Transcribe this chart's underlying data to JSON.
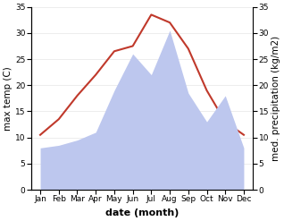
{
  "months": [
    "Jan",
    "Feb",
    "Mar",
    "Apr",
    "May",
    "Jun",
    "Jul",
    "Aug",
    "Sep",
    "Oct",
    "Nov",
    "Dec"
  ],
  "max_temp": [
    10.5,
    13.5,
    18.0,
    22.0,
    26.5,
    27.5,
    33.5,
    32.0,
    27.0,
    19.0,
    13.0,
    10.5
  ],
  "precipitation": [
    8.0,
    8.5,
    9.5,
    11.0,
    19.0,
    26.0,
    22.0,
    30.5,
    18.5,
    13.0,
    18.0,
    8.0
  ],
  "temp_color": "#c0392b",
  "precip_fill_color": "#bdc7ee",
  "background_color": "#ffffff",
  "ylim_left": [
    0,
    35
  ],
  "ylim_right": [
    0,
    35
  ],
  "xlabel": "date (month)",
  "ylabel_left": "max temp (C)",
  "ylabel_right": "med. precipitation (kg/m2)",
  "xlabel_fontsize": 8,
  "ylabel_fontsize": 7.5,
  "tick_fontsize": 6.5,
  "yticks": [
    0,
    5,
    10,
    15,
    20,
    25,
    30,
    35
  ]
}
